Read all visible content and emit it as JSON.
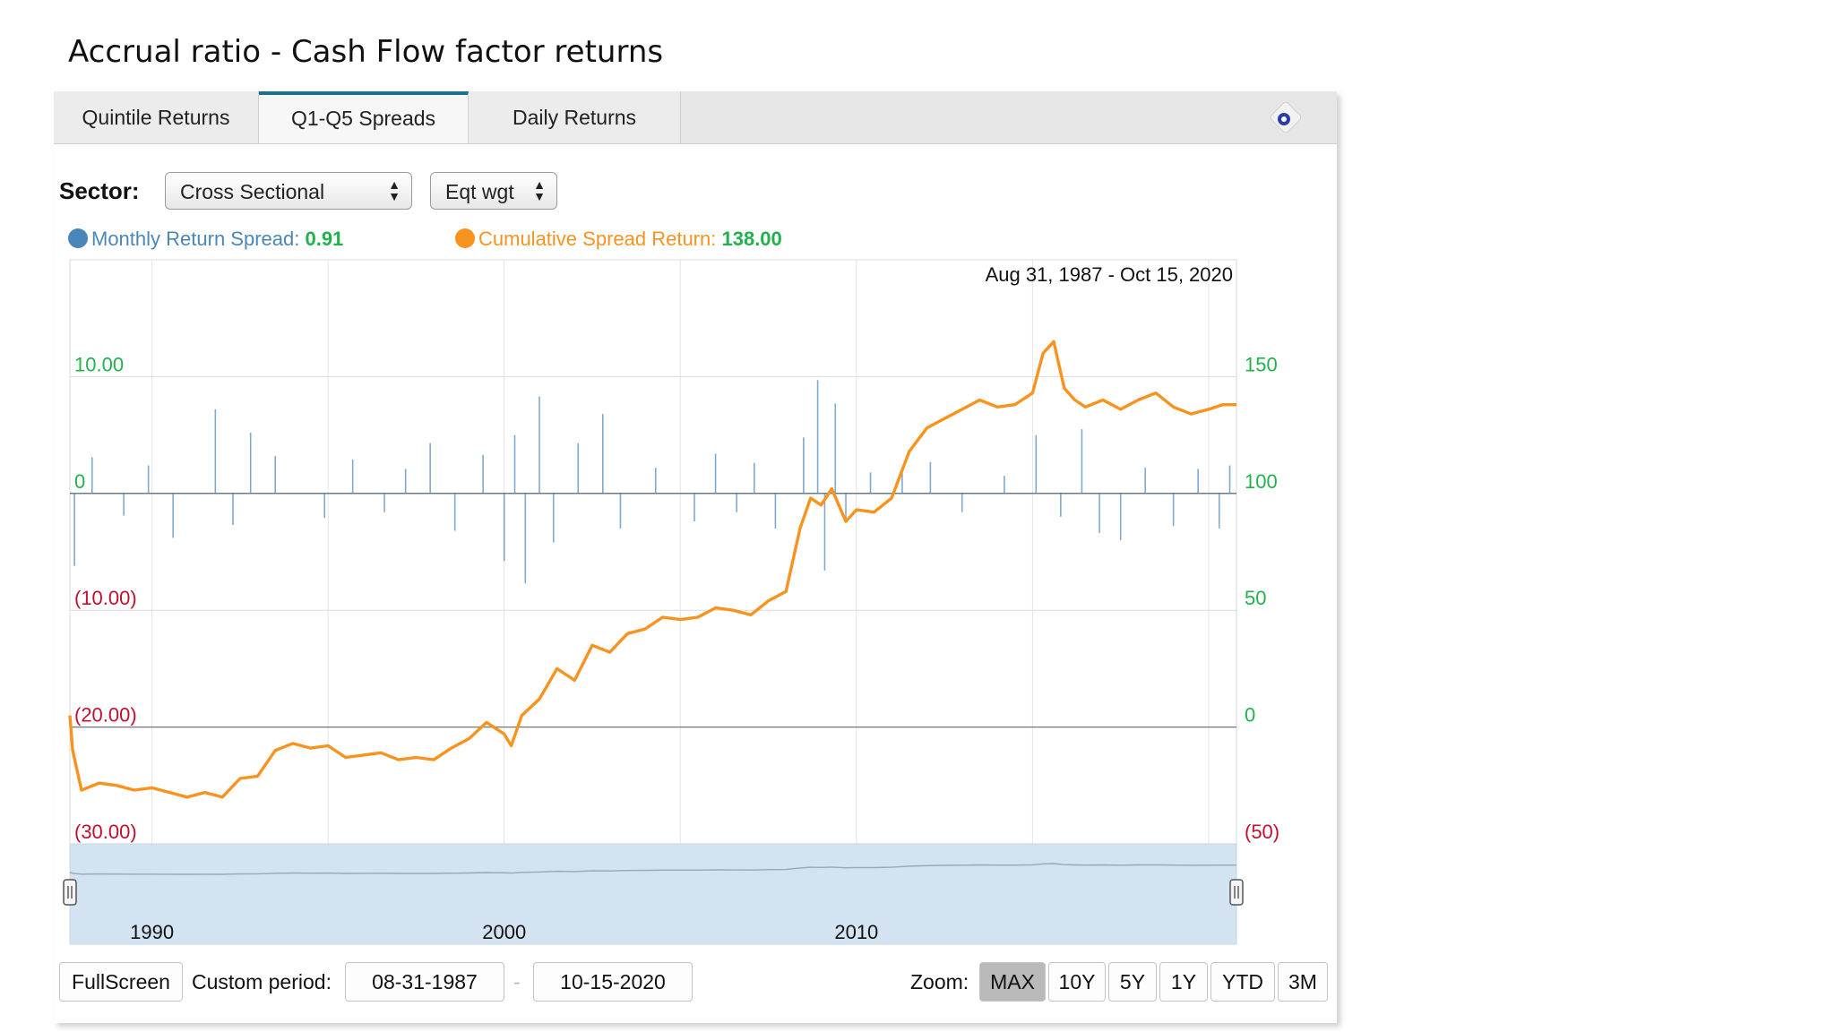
{
  "slide": {
    "title": "Accrual ratio - Cash Flow factor returns"
  },
  "tabs": [
    {
      "label": "Quintile Returns",
      "active": false
    },
    {
      "label": "Q1-Q5 Spreads",
      "active": true
    },
    {
      "label": "Daily Returns",
      "active": false
    }
  ],
  "controls": {
    "sector_label": "Sector:",
    "sector_value": "Cross Sectional",
    "weight_value": "Eqt wgt",
    "refresh_icon": "refresh-icon"
  },
  "legend": {
    "monthly_label": "Monthly Return Spread:",
    "monthly_value": "0.91",
    "cumulative_label": "Cumulative Spread Return:",
    "cumulative_value": "138.00"
  },
  "colors": {
    "monthly": "#4a86b8",
    "cumulative": "#f7931e",
    "positive_axis": "#22b14c",
    "negative_axis": "#c0102f",
    "navigator": "#d3e3f1"
  },
  "chart_data": {
    "type": "line",
    "date_range_label": "Aug 31, 1987 - Oct 15, 2020",
    "x_range": [
      1987.67,
      2020.79
    ],
    "left_axis": {
      "ylim": [
        -30,
        20
      ],
      "ticks": [
        10,
        0,
        -10,
        -20,
        -30
      ],
      "tick_labels": [
        "10.00",
        "0",
        "(10.00)",
        "(20.00)",
        "(30.00)"
      ]
    },
    "right_axis": {
      "ylim": [
        -50,
        200
      ],
      "ticks": [
        150,
        100,
        50,
        0,
        -50
      ],
      "tick_labels": [
        "150",
        "100",
        "50",
        "0",
        "(50)"
      ]
    },
    "x_gridlines": [
      1990,
      1995,
      2000,
      2005,
      2010,
      2015,
      2020
    ],
    "navigator_ticks": [
      {
        "x": 1990,
        "label": "1990"
      },
      {
        "x": 2000,
        "label": "2000"
      },
      {
        "x": 2010,
        "label": "2010"
      }
    ],
    "series": [
      {
        "name": "Cumulative Spread Return",
        "axis": "right",
        "points": [
          [
            1987.67,
            5
          ],
          [
            1987.75,
            -10
          ],
          [
            1988.0,
            -27
          ],
          [
            1988.5,
            -24
          ],
          [
            1989.0,
            -25
          ],
          [
            1989.5,
            -27
          ],
          [
            1990.0,
            -26
          ],
          [
            1990.5,
            -28
          ],
          [
            1991.0,
            -30
          ],
          [
            1991.5,
            -28
          ],
          [
            1992.0,
            -30
          ],
          [
            1992.5,
            -22
          ],
          [
            1993.0,
            -21
          ],
          [
            1993.5,
            -10
          ],
          [
            1994.0,
            -7
          ],
          [
            1994.5,
            -9
          ],
          [
            1995.0,
            -8
          ],
          [
            1995.5,
            -13
          ],
          [
            1996.0,
            -12
          ],
          [
            1996.5,
            -11
          ],
          [
            1997.0,
            -14
          ],
          [
            1997.5,
            -13
          ],
          [
            1998.0,
            -14
          ],
          [
            1998.5,
            -9
          ],
          [
            1999.0,
            -5
          ],
          [
            1999.5,
            2
          ],
          [
            2000.0,
            -3
          ],
          [
            2000.2,
            -8
          ],
          [
            2000.5,
            5
          ],
          [
            2001.0,
            12
          ],
          [
            2001.5,
            25
          ],
          [
            2002.0,
            20
          ],
          [
            2002.5,
            35
          ],
          [
            2003.0,
            32
          ],
          [
            2003.5,
            40
          ],
          [
            2004.0,
            42
          ],
          [
            2004.5,
            47
          ],
          [
            2005.0,
            46
          ],
          [
            2005.5,
            47
          ],
          [
            2006.0,
            51
          ],
          [
            2006.5,
            50
          ],
          [
            2007.0,
            48
          ],
          [
            2007.5,
            54
          ],
          [
            2008.0,
            58
          ],
          [
            2008.4,
            85
          ],
          [
            2008.7,
            98
          ],
          [
            2009.0,
            95
          ],
          [
            2009.3,
            102
          ],
          [
            2009.7,
            88
          ],
          [
            2010.0,
            93
          ],
          [
            2010.5,
            92
          ],
          [
            2011.0,
            98
          ],
          [
            2011.5,
            118
          ],
          [
            2012.0,
            128
          ],
          [
            2012.5,
            132
          ],
          [
            2013.0,
            136
          ],
          [
            2013.5,
            140
          ],
          [
            2014.0,
            137
          ],
          [
            2014.5,
            138
          ],
          [
            2015.0,
            143
          ],
          [
            2015.3,
            160
          ],
          [
            2015.6,
            165
          ],
          [
            2015.9,
            145
          ],
          [
            2016.2,
            140
          ],
          [
            2016.5,
            137
          ],
          [
            2017.0,
            140
          ],
          [
            2017.5,
            136
          ],
          [
            2018.0,
            140
          ],
          [
            2018.5,
            143
          ],
          [
            2019.0,
            137
          ],
          [
            2019.5,
            134
          ],
          [
            2020.0,
            136
          ],
          [
            2020.4,
            138
          ],
          [
            2020.79,
            138
          ]
        ]
      },
      {
        "name": "Monthly Return Spread",
        "axis": "left",
        "spikes": [
          [
            1987.8,
            -6.2
          ],
          [
            1988.3,
            3.1
          ],
          [
            1989.2,
            -1.9
          ],
          [
            1989.9,
            2.4
          ],
          [
            1990.6,
            -3.8
          ],
          [
            1991.8,
            7.2
          ],
          [
            1992.3,
            -2.7
          ],
          [
            1992.8,
            5.2
          ],
          [
            1993.5,
            3.2
          ],
          [
            1994.9,
            -2.1
          ],
          [
            1995.7,
            2.9
          ],
          [
            1996.6,
            -1.6
          ],
          [
            1997.2,
            2.1
          ],
          [
            1997.9,
            4.3
          ],
          [
            1998.6,
            -3.2
          ],
          [
            1999.4,
            3.3
          ],
          [
            2000.0,
            -5.8
          ],
          [
            2000.3,
            5.0
          ],
          [
            2000.6,
            -7.7
          ],
          [
            2001.0,
            8.3
          ],
          [
            2001.4,
            -4.2
          ],
          [
            2002.1,
            4.3
          ],
          [
            2002.8,
            6.8
          ],
          [
            2003.3,
            -3.0
          ],
          [
            2004.3,
            2.2
          ],
          [
            2005.4,
            -2.4
          ],
          [
            2006.0,
            3.4
          ],
          [
            2006.6,
            -1.6
          ],
          [
            2007.1,
            2.6
          ],
          [
            2007.7,
            -3.0
          ],
          [
            2008.5,
            4.8
          ],
          [
            2008.9,
            9.7
          ],
          [
            2009.1,
            -6.6
          ],
          [
            2009.4,
            7.7
          ],
          [
            2009.7,
            -2.4
          ],
          [
            2010.4,
            1.8
          ],
          [
            2011.3,
            1.9
          ],
          [
            2012.1,
            2.7
          ],
          [
            2013.0,
            -1.6
          ],
          [
            2014.2,
            1.5
          ],
          [
            2015.1,
            5.0
          ],
          [
            2015.8,
            -2.0
          ],
          [
            2016.4,
            5.5
          ],
          [
            2016.9,
            -3.4
          ],
          [
            2017.5,
            -4.0
          ],
          [
            2018.2,
            2.2
          ],
          [
            2019.0,
            -2.8
          ],
          [
            2019.7,
            2.1
          ],
          [
            2020.3,
            -3.0
          ],
          [
            2020.6,
            2.4
          ]
        ]
      }
    ]
  },
  "bottom": {
    "fullscreen_label": "FullScreen",
    "custom_period_label": "Custom period:",
    "start_date": "08-31-1987",
    "end_date": "10-15-2020",
    "separator": "-",
    "zoom_label": "Zoom:",
    "zoom_options": [
      "MAX",
      "10Y",
      "5Y",
      "1Y",
      "YTD",
      "3M"
    ],
    "zoom_active": "MAX"
  }
}
